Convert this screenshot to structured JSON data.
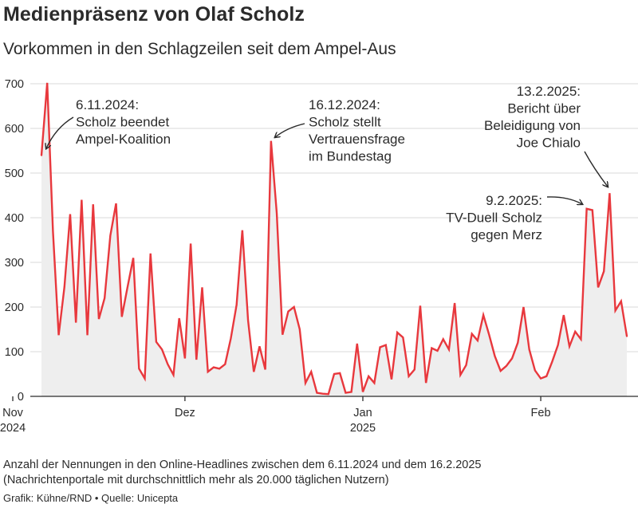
{
  "header": {
    "title": "Medienpräsenz von Olaf Scholz",
    "subtitle": "Vorkommen in den Schlagzeilen seit dem Ampel-Aus"
  },
  "footer": {
    "note_line1": "Anzahl der Nennungen in den Online-Headlines zwischen dem 6.11.2024 und dem 16.2.2025",
    "note_line2": "(Nachrichtenportale mit durchschnittlich mehr als 20.000 täglichen Nutzern)",
    "credit": "Grafik: Kühne/RND • Quelle: Unicepta"
  },
  "colors": {
    "line": "#e8383d",
    "area": "#eeeeee",
    "grid": "#d9d9d9",
    "axis": "#2b2b2b"
  },
  "chart_data": {
    "type": "area",
    "start_date": "2024-11-06",
    "end_date": "2025-02-16",
    "ylim": [
      0,
      700
    ],
    "yticks": [
      0,
      100,
      200,
      300,
      400,
      500,
      600,
      700
    ],
    "xticks": [
      {
        "date": "2024-11-01",
        "label": "Nov",
        "sublabel": "2024"
      },
      {
        "date": "2024-12-01",
        "label": "Dez",
        "sublabel": ""
      },
      {
        "date": "2025-01-01",
        "label": "Jan",
        "sublabel": "2025"
      },
      {
        "date": "2025-02-01",
        "label": "Feb",
        "sublabel": ""
      }
    ],
    "grid": "horizontal",
    "values": [
      540,
      702,
      370,
      137,
      245,
      408,
      165,
      440,
      137,
      430,
      173,
      220,
      360,
      432,
      178,
      245,
      310,
      62,
      40,
      320,
      122,
      105,
      72,
      48,
      175,
      85,
      342,
      82,
      244,
      55,
      65,
      62,
      72,
      130,
      205,
      372,
      170,
      55,
      112,
      60,
      572,
      410,
      138,
      190,
      200,
      150,
      30,
      55,
      8,
      6,
      5,
      50,
      52,
      8,
      10,
      118,
      10,
      45,
      30,
      110,
      115,
      38,
      143,
      132,
      45,
      60,
      203,
      30,
      108,
      102,
      128,
      105,
      209,
      48,
      70,
      140,
      125,
      182,
      138,
      90,
      57,
      68,
      85,
      120,
      200,
      105,
      58,
      40,
      45,
      78,
      115,
      182,
      112,
      145,
      128,
      420,
      417,
      244,
      280,
      455,
      192,
      213,
      135
    ],
    "annotations": [
      {
        "lines": [
          "6.11.2024:",
          "Scholz beendet",
          "Ampel-Koalition"
        ],
        "date": "2024-11-06",
        "value": 540,
        "align": "start"
      },
      {
        "lines": [
          "16.12.2024:",
          "Scholz stellt",
          "Vertrauensfrage",
          "im Bundestag"
        ],
        "date": "2024-12-16",
        "value": 572,
        "align": "start"
      },
      {
        "lines": [
          "13.2.2025:",
          "Bericht über",
          "Beleidigung von",
          "Joe Chialo"
        ],
        "date": "2025-02-13",
        "value": 455,
        "align": "end"
      },
      {
        "lines": [
          "9.2.2025:",
          "TV-Duell Scholz",
          "gegen Merz"
        ],
        "date": "2025-02-09",
        "value": 420,
        "align": "end"
      }
    ]
  }
}
